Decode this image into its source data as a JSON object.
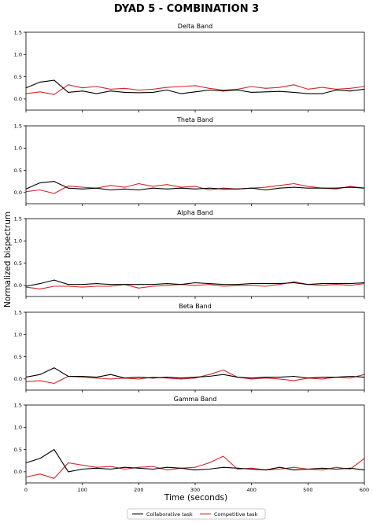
{
  "chart_data": {
    "type": "line",
    "title": "DYAD 5 - COMBINATION 3",
    "xlabel": "Time (seconds)",
    "ylabel": "Normalized bispectrum",
    "xlim": [
      0,
      600
    ],
    "ylim": [
      -0.25,
      1.5
    ],
    "xticks": [
      "0",
      "100",
      "200",
      "300",
      "400",
      "500",
      "600"
    ],
    "yticks": [
      "0.0",
      "0.5",
      "1.0",
      "1.5"
    ],
    "grid": false,
    "legend_position": "bottom-center",
    "legend": [
      {
        "name": "Collaborative task",
        "color": "#000000"
      },
      {
        "name": "Competitive task",
        "color": "#d62728"
      }
    ],
    "x": [
      0,
      25,
      50,
      75,
      100,
      125,
      150,
      175,
      200,
      225,
      250,
      275,
      300,
      325,
      350,
      375,
      400,
      425,
      450,
      475,
      500,
      525,
      550,
      575,
      600
    ],
    "panels": [
      {
        "title": "Delta Band",
        "series": [
          {
            "name": "Collaborative task",
            "values": [
              0.25,
              0.38,
              0.42,
              0.15,
              0.18,
              0.12,
              0.18,
              0.15,
              0.14,
              0.15,
              0.2,
              0.12,
              0.16,
              0.2,
              0.18,
              0.2,
              0.15,
              0.16,
              0.17,
              0.15,
              0.12,
              0.12,
              0.2,
              0.18,
              0.22
            ]
          },
          {
            "name": "Competitive task",
            "values": [
              0.12,
              0.16,
              0.1,
              0.32,
              0.25,
              0.28,
              0.22,
              0.24,
              0.2,
              0.22,
              0.26,
              0.28,
              0.3,
              0.24,
              0.2,
              0.22,
              0.28,
              0.24,
              0.26,
              0.32,
              0.22,
              0.26,
              0.22,
              0.24,
              0.28
            ]
          }
        ]
      },
      {
        "title": "Theta Band",
        "series": [
          {
            "name": "Collaborative task",
            "values": [
              0.08,
              0.22,
              0.25,
              0.1,
              0.08,
              0.1,
              0.06,
              0.08,
              0.06,
              0.1,
              0.08,
              0.1,
              0.08,
              0.1,
              0.08,
              0.08,
              0.1,
              0.06,
              0.1,
              0.12,
              0.1,
              0.1,
              0.1,
              0.12,
              0.1
            ]
          },
          {
            "name": "Competitive task",
            "values": [
              0.02,
              0.06,
              -0.02,
              0.15,
              0.12,
              0.1,
              0.16,
              0.12,
              0.2,
              0.14,
              0.18,
              0.12,
              0.14,
              0.06,
              0.1,
              0.08,
              0.1,
              0.12,
              0.16,
              0.2,
              0.14,
              0.1,
              0.08,
              0.14,
              0.1
            ]
          }
        ]
      },
      {
        "title": "Alpha Band",
        "series": [
          {
            "name": "Collaborative task",
            "values": [
              -0.02,
              0.04,
              0.12,
              0.02,
              0.02,
              0.04,
              0.02,
              0.02,
              0.02,
              0.02,
              0.04,
              0.02,
              0.06,
              0.04,
              0.02,
              0.02,
              0.04,
              0.04,
              0.04,
              0.06,
              0.02,
              0.04,
              0.04,
              0.04,
              0.06
            ]
          },
          {
            "name": "Competitive task",
            "values": [
              -0.04,
              -0.08,
              -0.02,
              -0.02,
              -0.04,
              -0.02,
              -0.02,
              0.02,
              -0.06,
              -0.02,
              0.0,
              0.02,
              0.0,
              0.02,
              -0.02,
              0.0,
              0.0,
              -0.02,
              0.02,
              0.08,
              0.02,
              0.0,
              0.02,
              0.0,
              0.04
            ]
          }
        ]
      },
      {
        "title": "Beta Band",
        "series": [
          {
            "name": "Collaborative task",
            "values": [
              0.04,
              0.1,
              0.25,
              0.06,
              0.06,
              0.04,
              0.1,
              0.02,
              0.04,
              0.02,
              0.04,
              0.02,
              0.04,
              0.06,
              0.1,
              0.04,
              0.02,
              0.04,
              0.04,
              0.06,
              0.02,
              0.04,
              0.04,
              0.06,
              0.04
            ]
          },
          {
            "name": "Competitive task",
            "values": [
              -0.06,
              -0.04,
              -0.1,
              0.06,
              0.04,
              0.02,
              0.0,
              0.02,
              0.0,
              0.04,
              0.02,
              0.0,
              0.02,
              0.1,
              0.2,
              0.04,
              0.0,
              0.02,
              0.0,
              -0.04,
              0.02,
              0.0,
              0.04,
              0.02,
              0.1
            ]
          }
        ]
      },
      {
        "title": "Gamma Band",
        "series": [
          {
            "name": "Collaborative task",
            "values": [
              0.2,
              0.3,
              0.5,
              0.0,
              0.06,
              0.08,
              0.06,
              0.1,
              0.08,
              0.06,
              0.1,
              0.08,
              0.04,
              0.06,
              0.1,
              0.08,
              0.06,
              0.04,
              0.1,
              0.04,
              0.06,
              0.08,
              0.06,
              0.08,
              0.04
            ]
          },
          {
            "name": "Competitive task",
            "values": [
              -0.12,
              -0.05,
              -0.15,
              0.2,
              0.15,
              0.1,
              0.12,
              0.06,
              0.1,
              0.12,
              0.04,
              0.08,
              0.1,
              0.2,
              0.35,
              0.06,
              0.08,
              0.04,
              0.06,
              0.1,
              0.06,
              0.04,
              0.1,
              0.06,
              0.3
            ]
          }
        ]
      }
    ]
  }
}
